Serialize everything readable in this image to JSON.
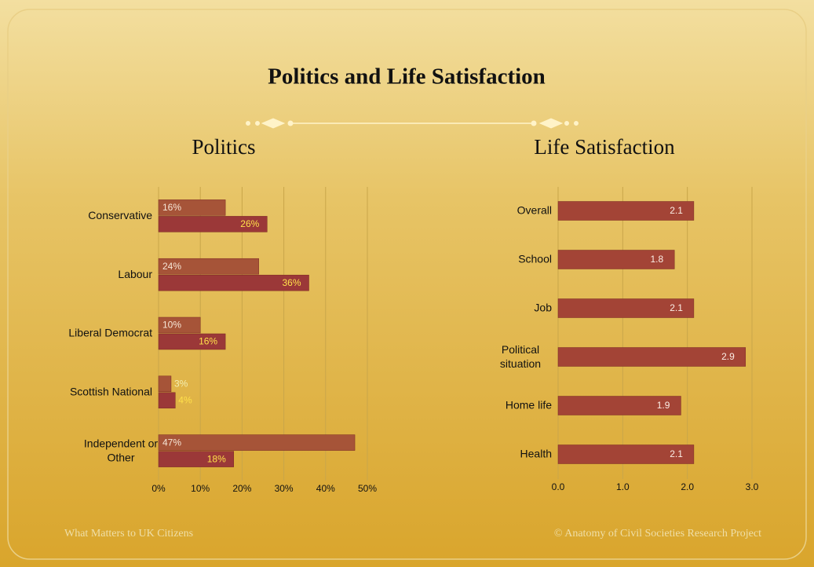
{
  "slide": {
    "title": "Politics and Life Satisfaction",
    "footer_left": "What Matters to UK Citizens",
    "footer_right": "© Anatomy of Civil Societies Research Project"
  },
  "chart_data": [
    {
      "type": "hbar",
      "title": "Politics",
      "categories": [
        "Conservative",
        "Labour",
        "Liberal Democrat",
        "Scottish National",
        "Independent or Other"
      ],
      "series": [
        {
          "color": "#a65438",
          "values": [
            16,
            24,
            10,
            3,
            47
          ],
          "value_labels": [
            "16%",
            "24%",
            "10%",
            "3%",
            "47%"
          ]
        },
        {
          "color": "#9b3838",
          "values": [
            26,
            36,
            16,
            4,
            18
          ],
          "value_labels": [
            "26%",
            "36%",
            "16%",
            "4%",
            "18%"
          ]
        }
      ],
      "xlim": [
        0,
        50
      ],
      "xticks": [
        {
          "value": 0,
          "label": "0%"
        },
        {
          "value": 10,
          "label": "10%"
        },
        {
          "value": 20,
          "label": "20%"
        },
        {
          "value": 30,
          "label": "30%"
        },
        {
          "value": 40,
          "label": "40%"
        },
        {
          "value": 50,
          "label": "50%"
        }
      ],
      "grid": true
    },
    {
      "type": "hbar",
      "title": "Life Satisfaction",
      "categories": [
        "Overall",
        "School",
        "Job",
        "Political situation",
        "Home life",
        "Health"
      ],
      "series": [
        {
          "color": "#a34436",
          "values": [
            2.1,
            1.8,
            2.1,
            2.9,
            1.9,
            2.1
          ]
        }
      ],
      "xlim": [
        0,
        3
      ],
      "xticks": [
        {
          "value": 0,
          "label": "0.0"
        },
        {
          "value": 1,
          "label": "1.0"
        },
        {
          "value": 2,
          "label": "2.0"
        },
        {
          "value": 3,
          "label": "3.0"
        }
      ],
      "grid": true
    }
  ]
}
